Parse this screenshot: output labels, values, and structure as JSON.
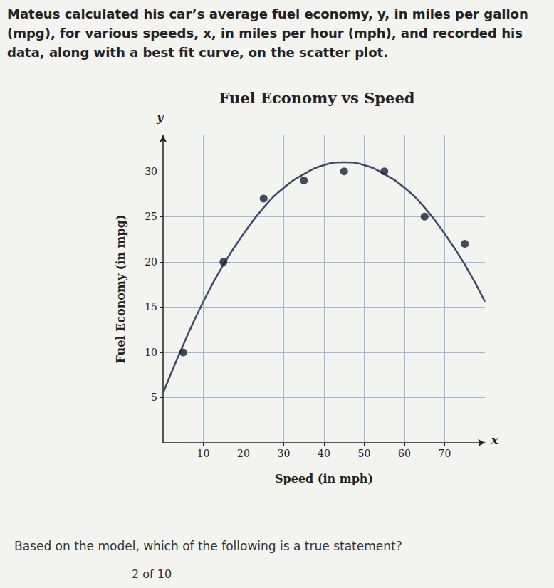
{
  "intro": "Mateus calculated his car’s average fuel economy, y, in miles per gallon (mpg), for various speeds, x, in miles per hour (mph), and recorded his data, along with a best fit curve, on the scatter plot.",
  "question": "Based on the model, which of the following is a true statement?",
  "progress": "2 of 10",
  "chart_data": {
    "type": "scatter",
    "title": "Fuel Economy vs Speed",
    "xlabel": "Speed (in mph)",
    "ylabel": "Fuel Economy (in mpg)",
    "x_symbol": "x",
    "y_symbol": "y",
    "xlim": [
      0,
      80
    ],
    "xticks": [
      10,
      20,
      30,
      40,
      50,
      60,
      70
    ],
    "ylim": [
      0,
      34
    ],
    "yticks": [
      5,
      10,
      15,
      20,
      25,
      30
    ],
    "grid": true,
    "series": [
      {
        "type": "scatter",
        "marker": "circle",
        "color": "#1c1f33",
        "x": [
          5,
          15,
          25,
          35,
          45,
          55,
          65,
          75
        ],
        "values": [
          10,
          20,
          27,
          29,
          30,
          30,
          25,
          22
        ]
      },
      {
        "type": "line",
        "line_style": "solid",
        "color": "#3b4a6b",
        "x": [
          0,
          5,
          10,
          15,
          20,
          25,
          30,
          35,
          40,
          45,
          50,
          55,
          60,
          65,
          70,
          75,
          80
        ],
        "values": [
          5.5,
          10.8,
          15.6,
          19.7,
          23.1,
          26,
          28.2,
          29.7,
          30.7,
          31,
          30.7,
          29.7,
          28.2,
          26,
          23.1,
          19.7,
          15.6
        ]
      }
    ]
  }
}
